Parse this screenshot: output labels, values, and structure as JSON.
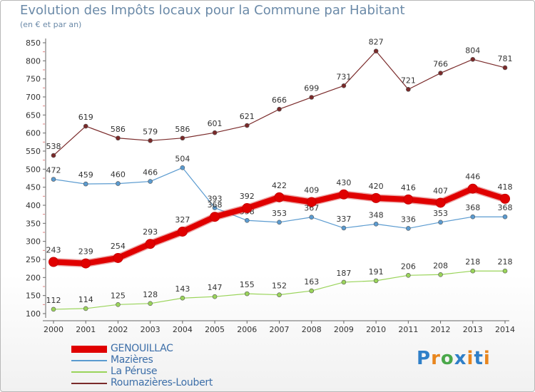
{
  "title": "Evolution des Impôts locaux pour la Commune par Habitant",
  "subtitle": "(en € et par an)",
  "logo": {
    "text": "Proxiti",
    "colors": [
      "#2f7fc8",
      "#e8861e",
      "#4aa84a",
      "#2f7fc8",
      "#e8861e",
      "#2f7fc8",
      "#e8861e"
    ]
  },
  "chart_data": {
    "type": "line",
    "title": "Evolution des Impôts locaux pour la Commune par Habitant",
    "subtitle": "(en € et par an)",
    "x": [
      "2000",
      "2001",
      "2002",
      "2003",
      "2004",
      "2005",
      "2006",
      "2007",
      "2008",
      "2009",
      "2010",
      "2011",
      "2012",
      "2013",
      "2014"
    ],
    "ylim": [
      100,
      850
    ],
    "yticks": [
      100,
      150,
      200,
      250,
      300,
      350,
      400,
      450,
      500,
      550,
      600,
      650,
      700,
      750,
      800,
      850
    ],
    "grid": false,
    "legend_position": "bottom-left",
    "series": [
      {
        "name": "Roumazières-Loubert",
        "color": "#7a2a2a",
        "values": [
          538,
          619,
          586,
          579,
          586,
          601,
          621,
          666,
          699,
          731,
          827,
          721,
          766,
          804,
          781
        ],
        "labels": [
          "538",
          "619",
          "586",
          "579",
          "586",
          "601",
          "621",
          "666",
          "699",
          "731",
          "827",
          "721",
          "766",
          "804",
          "781"
        ]
      },
      {
        "name": "Mazières",
        "color": "#5b9bd0",
        "values": [
          472,
          459,
          460,
          466,
          504,
          393,
          358,
          353,
          367,
          337,
          348,
          336,
          353,
          368,
          368
        ],
        "labels": [
          "472",
          "459",
          "460",
          "466",
          "504",
          "393",
          "358",
          "353",
          "367",
          "337",
          "348",
          "336",
          "353",
          "368",
          "368"
        ]
      },
      {
        "name": "La Péruse",
        "color": "#9ad45a",
        "values": [
          112,
          114,
          125,
          128,
          143,
          147,
          155,
          152,
          163,
          187,
          191,
          206,
          208,
          218,
          218
        ],
        "labels": [
          "112",
          "114",
          "125",
          "128",
          "143",
          "147",
          "155",
          "152",
          "163",
          "187",
          "191",
          "206",
          "208",
          "218",
          "218"
        ]
      },
      {
        "name": "GENOUILLAC",
        "color": "#e00000",
        "values": [
          243,
          239,
          254,
          293,
          327,
          368,
          392,
          422,
          409,
          430,
          420,
          416,
          407,
          446,
          418
        ],
        "labels": [
          "243",
          "239",
          "254",
          "293",
          "327",
          "368",
          "392",
          "422",
          "409",
          "430",
          "420",
          "416",
          "407",
          "446",
          "418"
        ]
      }
    ],
    "legend": [
      "GENOUILLAC",
      "Mazières",
      "La Péruse",
      "Roumazières-Loubert"
    ]
  }
}
